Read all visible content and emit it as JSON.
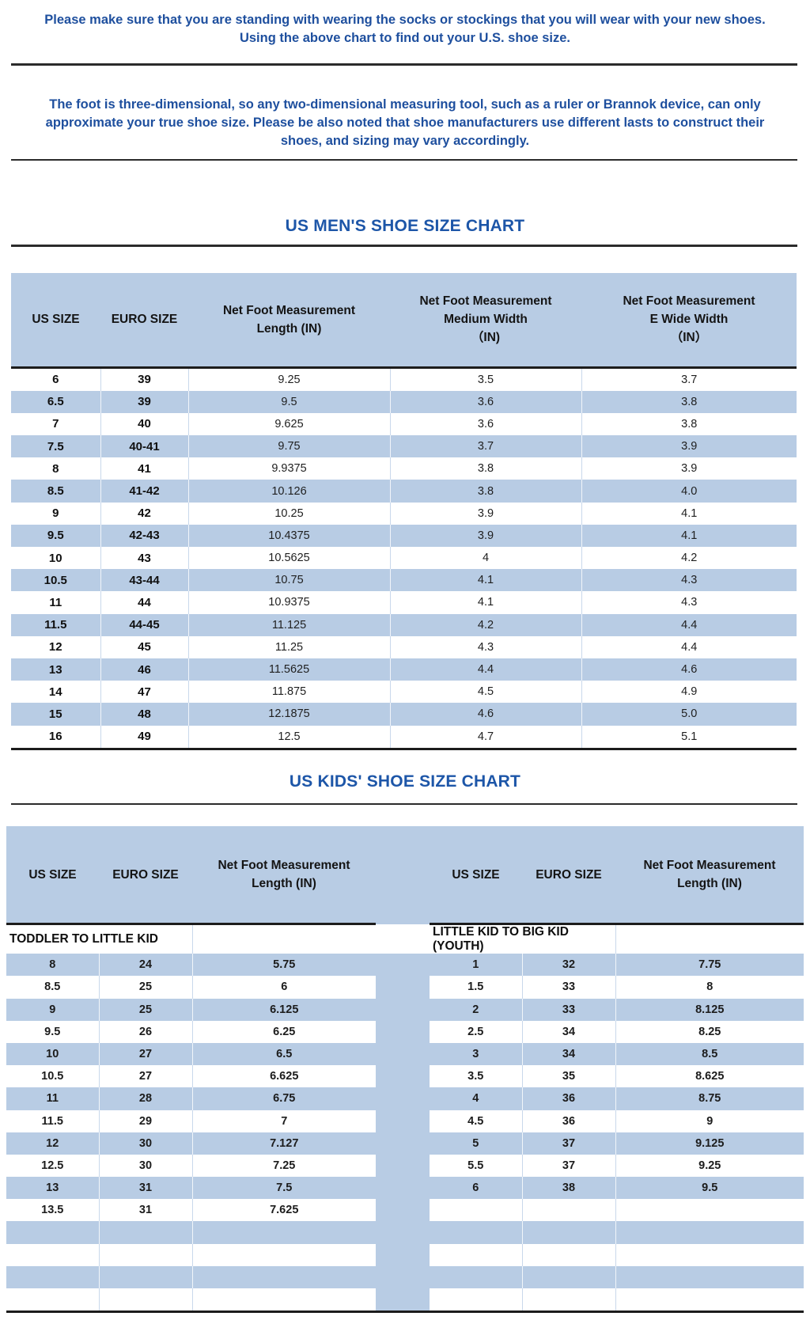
{
  "page": {
    "note1_lines": [
      "Please make sure that you are standing with wearing the socks or stockings that you will wear with your new shoes.",
      "Using the above chart to find out your U.S. shoe size."
    ],
    "note2_lines": [
      "The foot is three-dimensional, so any two-dimensional measuring tool, such as a ruler or Brannok device, can only",
      "approximate your true shoe size. Please be also noted that shoe manufacturers use different lasts to construct their",
      "shoes, and sizing may vary accordingly."
    ]
  },
  "mens_chart": {
    "title": "US MEN'S SHOE SIZE CHART",
    "columns": [
      [
        "US SIZE"
      ],
      [
        "EURO SIZE"
      ],
      [
        "Net Foot Measurement",
        "Length (IN)"
      ],
      [
        "Net Foot Measurement",
        "Medium Width",
        "（IN)"
      ],
      [
        "Net Foot Measurement",
        "E Wide Width",
        "（IN）"
      ]
    ],
    "rows": [
      [
        "6",
        "39",
        "9.25",
        "3.5",
        "3.7"
      ],
      [
        "6.5",
        "39",
        "9.5",
        "3.6",
        "3.8"
      ],
      [
        "7",
        "40",
        "9.625",
        "3.6",
        "3.8"
      ],
      [
        "7.5",
        "40-41",
        "9.75",
        "3.7",
        "3.9"
      ],
      [
        "8",
        "41",
        "9.9375",
        "3.8",
        "3.9"
      ],
      [
        "8.5",
        "41-42",
        "10.126",
        "3.8",
        "4.0"
      ],
      [
        "9",
        "42",
        "10.25",
        "3.9",
        "4.1"
      ],
      [
        "9.5",
        "42-43",
        "10.4375",
        "3.9",
        "4.1"
      ],
      [
        "10",
        "43",
        "10.5625",
        "4",
        "4.2"
      ],
      [
        "10.5",
        "43-44",
        "10.75",
        "4.1",
        "4.3"
      ],
      [
        "11",
        "44",
        "10.9375",
        "4.1",
        "4.3"
      ],
      [
        "11.5",
        "44-45",
        "11.125",
        "4.2",
        "4.4"
      ],
      [
        "12",
        "45",
        "11.25",
        "4.3",
        "4.4"
      ],
      [
        "13",
        "46",
        "11.5625",
        "4.4",
        "4.6"
      ],
      [
        "14",
        "47",
        "11.875",
        "4.5",
        "4.9"
      ],
      [
        "15",
        "48",
        "12.1875",
        "4.6",
        "5.0"
      ],
      [
        "16",
        "49",
        "12.5",
        "4.7",
        "5.1"
      ]
    ]
  },
  "kids_chart": {
    "title": "US KIDS' SHOE SIZE CHART",
    "columns_left": [
      [
        "US SIZE"
      ],
      [
        "EURO SIZE"
      ],
      [
        "Net Foot Measurement",
        "Length (IN)"
      ]
    ],
    "columns_right": [
      [
        "US SIZE"
      ],
      [
        "EURO SIZE"
      ],
      [
        "Net Foot Measurement",
        "Length (IN)"
      ]
    ],
    "section_left": "TODDLER TO LITTLE KID",
    "section_right": "LITTLE KID TO BIG KID (YOUTH)",
    "rows_left": [
      [
        "8",
        "24",
        "5.75"
      ],
      [
        "8.5",
        "25",
        "6"
      ],
      [
        "9",
        "25",
        "6.125"
      ],
      [
        "9.5",
        "26",
        "6.25"
      ],
      [
        "10",
        "27",
        "6.5"
      ],
      [
        "10.5",
        "27",
        "6.625"
      ],
      [
        "11",
        "28",
        "6.75"
      ],
      [
        "11.5",
        "29",
        "7"
      ],
      [
        "12",
        "30",
        "7.127"
      ],
      [
        "12.5",
        "30",
        "7.25"
      ],
      [
        "13",
        "31",
        "7.5"
      ],
      [
        "13.5",
        "31",
        "7.625"
      ]
    ],
    "rows_right": [
      [
        "1",
        "32",
        "7.75"
      ],
      [
        "1.5",
        "33",
        "8"
      ],
      [
        "2",
        "33",
        "8.125"
      ],
      [
        "2.5",
        "34",
        "8.25"
      ],
      [
        "3",
        "34",
        "8.5"
      ],
      [
        "3.5",
        "35",
        "8.625"
      ],
      [
        "4",
        "36",
        "8.75"
      ],
      [
        "4.5",
        "36",
        "9"
      ],
      [
        "5",
        "37",
        "9.125"
      ],
      [
        "5.5",
        "37",
        "9.25"
      ],
      [
        "6",
        "38",
        "9.5"
      ]
    ],
    "total_body_rows": 16
  },
  "colors": {
    "note_text": "#1e4f9e",
    "title_text": "#1d56a8",
    "band_blue": "#b8cce4",
    "dark_line": "#1c1c1c"
  }
}
